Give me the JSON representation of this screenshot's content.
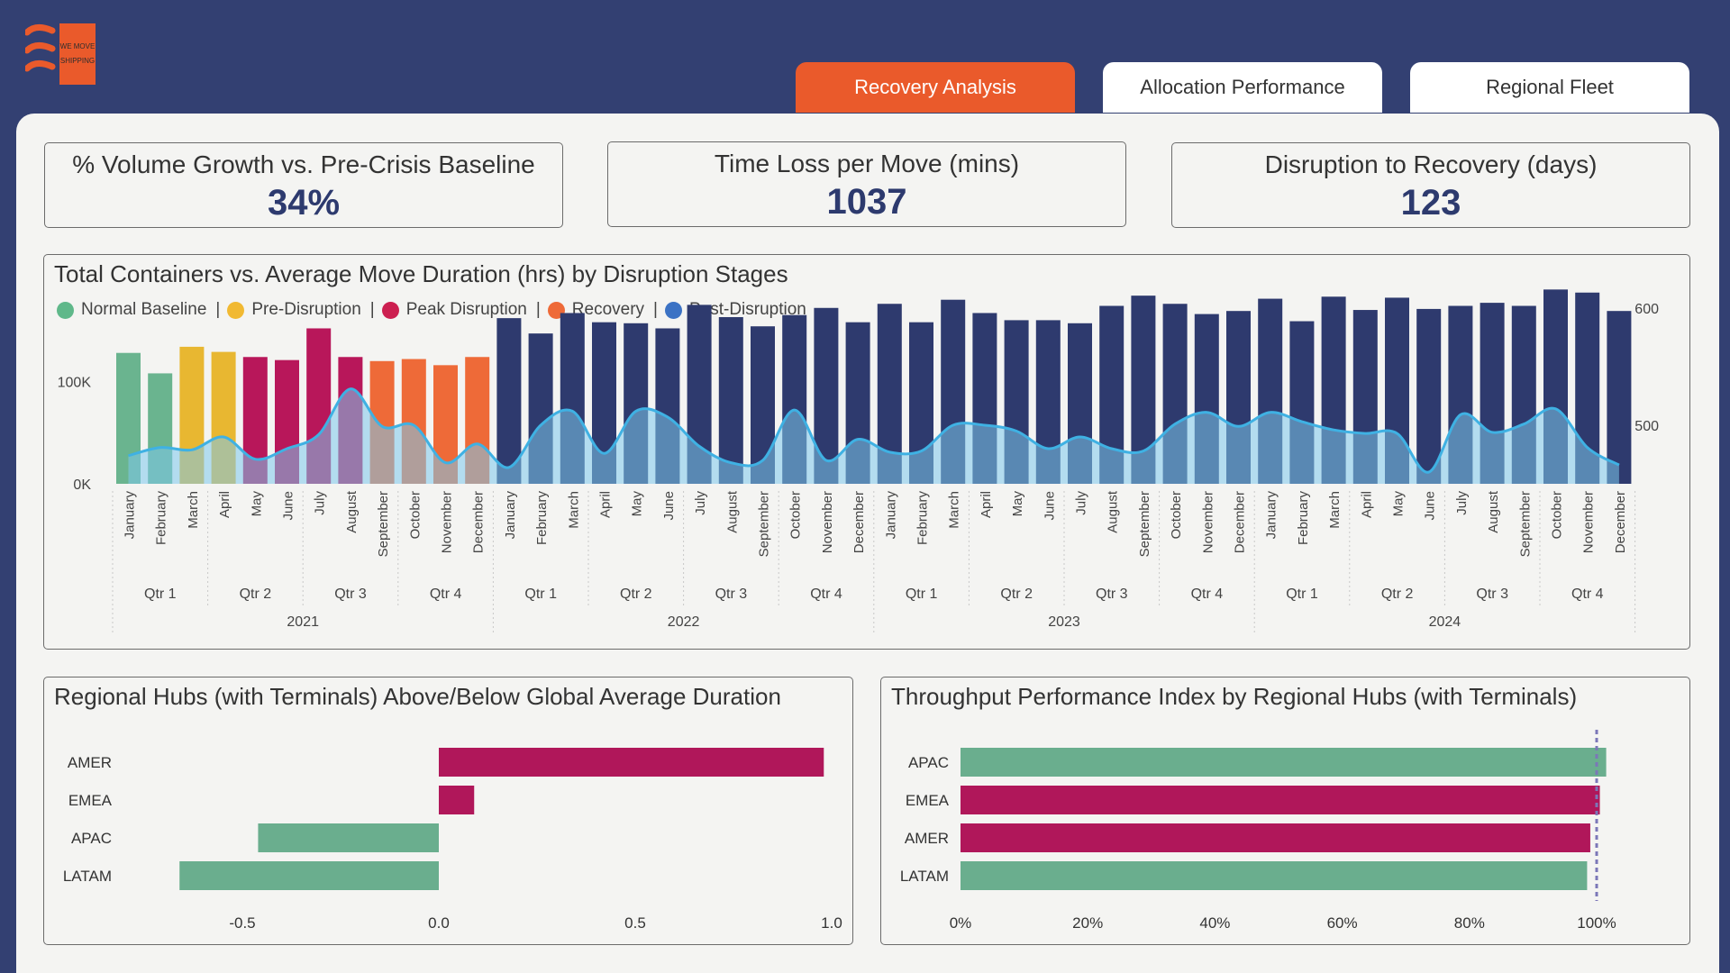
{
  "logo": {
    "text_line1": "WE MOVE",
    "text_line2": "SHIPPING",
    "icon": "waves-icon",
    "color": "#ea5a2b"
  },
  "tabs": [
    {
      "label": "Recovery Analysis",
      "active": true
    },
    {
      "label": "Allocation Performance",
      "active": false
    },
    {
      "label": "Regional Fleet",
      "active": false
    }
  ],
  "kpis": [
    {
      "label": "% Volume Growth vs. Pre-Crisis Baseline",
      "value": "34%"
    },
    {
      "label": "Time Loss per Move (mins)",
      "value": "1037"
    },
    {
      "label": "Disruption to Recovery (days)",
      "value": "123"
    }
  ],
  "main_chart": {
    "title": "Total Containers vs. Average Move Duration (hrs) by Disruption Stages",
    "legend": [
      {
        "label": "Normal Baseline",
        "color": "#5fb88a"
      },
      {
        "label": "Pre-Disruption",
        "color": "#f1b932"
      },
      {
        "label": "Peak Disruption",
        "color": "#cc1f50"
      },
      {
        "label": "Recovery",
        "color": "#ee6a38"
      },
      {
        "label": "Post-Disruption",
        "color": "#3b72c4"
      }
    ],
    "left_ticks": [
      "0K",
      "100K"
    ],
    "right_ticks": [
      "500",
      "600"
    ],
    "months": [
      "January",
      "February",
      "March",
      "April",
      "May",
      "June",
      "July",
      "August",
      "September",
      "October",
      "November",
      "December"
    ],
    "quarters": [
      "Qtr 1",
      "Qtr 2",
      "Qtr 3",
      "Qtr 4"
    ],
    "years": [
      "2021",
      "2022",
      "2023",
      "2024"
    ]
  },
  "chart_data": [
    {
      "type": "bar",
      "title": "Total Containers vs. Average Move Duration (hrs) by Disruption Stages",
      "categories_note": "monthly Jan 2021 - Dec 2024",
      "stage_colors": {
        "baseline": "#6ab48f",
        "pre": "#e8b731",
        "peak": "#b8175a",
        "recovery": "#ee6a38",
        "post": "#2e3a6e"
      },
      "stages": [
        "baseline",
        "baseline",
        "pre",
        "pre",
        "peak",
        "peak",
        "peak",
        "peak",
        "recovery",
        "recovery",
        "recovery",
        "recovery",
        "post",
        "post",
        "post",
        "post",
        "post",
        "post",
        "post",
        "post",
        "post",
        "post",
        "post",
        "post",
        "post",
        "post",
        "post",
        "post",
        "post",
        "post",
        "post",
        "post",
        "post",
        "post",
        "post",
        "post",
        "post",
        "post",
        "post",
        "post",
        "post",
        "post",
        "post",
        "post",
        "post",
        "post",
        "post",
        "post"
      ],
      "containers_k": [
        128,
        108,
        134,
        129,
        124,
        121,
        152,
        124,
        120,
        122,
        116,
        124,
        162,
        147,
        167,
        158,
        157,
        152,
        175,
        163,
        154,
        165,
        172,
        158,
        176,
        158,
        180,
        167,
        160,
        160,
        157,
        174,
        184,
        176,
        166,
        169,
        181,
        159,
        183,
        170,
        182,
        171,
        174,
        177,
        174,
        190,
        187,
        169
      ],
      "duration_hrs": [
        474,
        481,
        479,
        490,
        471,
        480,
        492,
        531,
        499,
        500,
        468,
        484,
        464,
        500,
        512,
        476,
        512,
        507,
        482,
        468,
        470,
        513,
        470,
        488,
        477,
        478,
        500,
        500,
        495,
        480,
        490,
        480,
        478,
        501,
        511,
        499,
        511,
        503,
        496,
        493,
        493,
        460,
        509,
        494,
        501,
        514,
        481,
        466
      ],
      "left_ylim": [
        0,
        200
      ],
      "right_ylim": [
        450,
        610
      ],
      "left_ticks": [
        0,
        100
      ],
      "right_ticks": [
        500,
        600
      ],
      "legend_position": "top-left"
    },
    {
      "type": "bar",
      "title": "Regional Hubs (with Terminals) Above/Below Global Average Duration",
      "categories": [
        "AMER",
        "EMEA",
        "APAC",
        "LATAM"
      ],
      "values": [
        0.98,
        0.09,
        -0.46,
        -0.66
      ],
      "colors": [
        "#b0175a",
        "#b0175a",
        "#6aae8e",
        "#6aae8e"
      ],
      "xlim": [
        -0.66,
        1.0
      ],
      "xticks": [
        "-0.5",
        "0.0",
        "0.5",
        "1.0"
      ],
      "tick_values": [
        -0.5,
        0.0,
        0.5,
        1.0
      ]
    },
    {
      "type": "bar",
      "title": "Throughput Performance Index by Regional Hubs (with Terminals)",
      "categories": [
        "APAC",
        "EMEA",
        "AMER",
        "LATAM"
      ],
      "values": [
        101.5,
        100.5,
        99.0,
        98.5
      ],
      "colors": [
        "#6aae8e",
        "#b0175a",
        "#b0175a",
        "#6aae8e"
      ],
      "xlim": [
        0,
        100
      ],
      "xticks": [
        "0%",
        "20%",
        "40%",
        "60%",
        "80%",
        "100%"
      ],
      "tick_values": [
        0,
        20,
        40,
        60,
        80,
        100
      ],
      "reference_line": 100
    }
  ]
}
